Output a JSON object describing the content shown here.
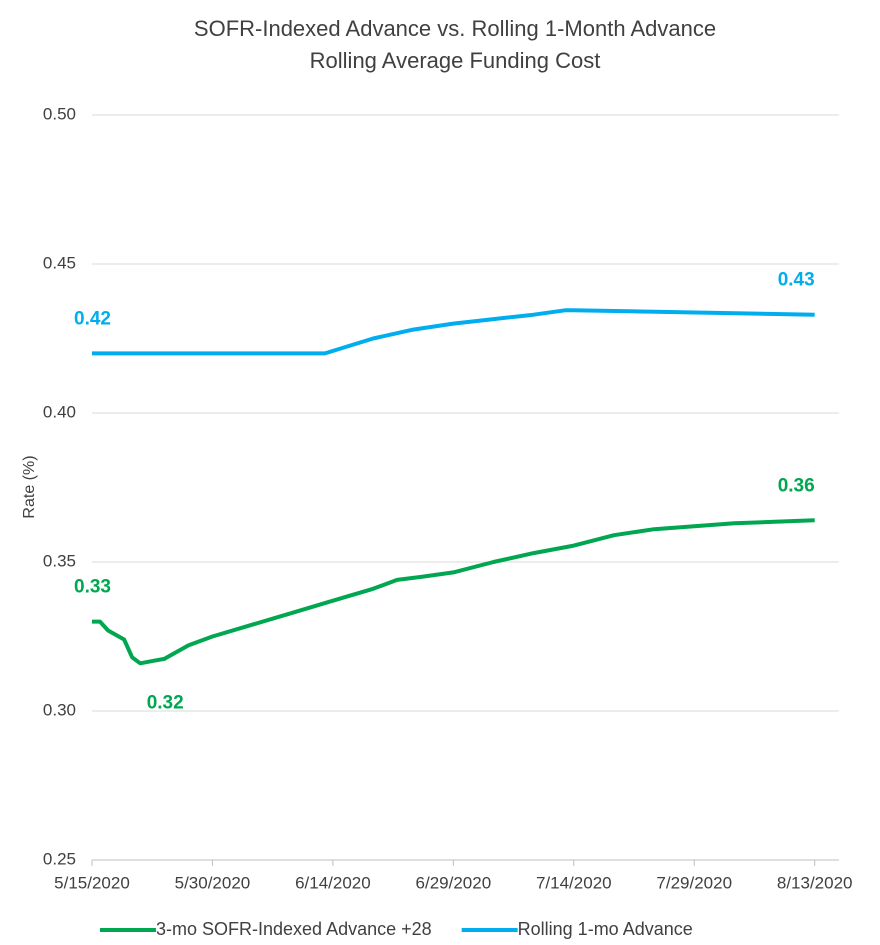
{
  "chart_data": {
    "type": "line",
    "title": "SOFR-Indexed Advance vs. Rolling 1-Month Advance",
    "subtitle": "Rolling Average Funding Cost",
    "y_label": "Rate (%)",
    "xlim": [
      "5/15/2020",
      "8/16/2020"
    ],
    "xticks": [
      "5/15/2020",
      "5/30/2020",
      "6/14/2020",
      "6/29/2020",
      "7/14/2020",
      "7/29/2020",
      "8/13/2020"
    ],
    "ylim": [
      0.25,
      0.5
    ],
    "yticks": [
      {
        "value": 0.25,
        "label": "0.25"
      },
      {
        "value": 0.3,
        "label": "0.30"
      },
      {
        "value": 0.35,
        "label": "0.35"
      },
      {
        "value": 0.4,
        "label": "0.40"
      },
      {
        "value": 0.45,
        "label": "0.45"
      },
      {
        "value": 0.5,
        "label": "0.50"
      }
    ],
    "grid": true,
    "legend": "bottom",
    "series": [
      {
        "name": "3-mo SOFR-Indexed Advance +28",
        "color": "#00a650",
        "x": [
          "5/15/2020",
          "5/16/2020",
          "5/17/2020",
          "5/19/2020",
          "5/20/2020",
          "5/21/2020",
          "5/23/2020",
          "5/24/2020",
          "5/25/2020",
          "5/27/2020",
          "5/30/2020",
          "6/4/2020",
          "6/9/2020",
          "6/14/2020",
          "6/19/2020",
          "6/22/2020",
          "6/25/2020",
          "6/29/2020",
          "7/4/2020",
          "7/9/2020",
          "7/14/2020",
          "7/19/2020",
          "7/24/2020",
          "7/29/2020",
          "8/3/2020",
          "8/8/2020",
          "8/13/2020"
        ],
        "values": [
          0.33,
          0.33,
          0.327,
          0.324,
          0.318,
          0.316,
          0.317,
          0.3175,
          0.319,
          0.322,
          0.325,
          0.329,
          0.333,
          0.337,
          0.341,
          0.344,
          0.345,
          0.3465,
          0.35,
          0.353,
          0.3555,
          0.359,
          0.361,
          0.362,
          0.363,
          0.3635,
          0.364
        ],
        "value_labels": [
          "0.33",
          null,
          null,
          null,
          null,
          "0.32",
          null,
          null,
          null,
          null,
          null,
          null,
          null,
          null,
          null,
          null,
          null,
          null,
          null,
          null,
          null,
          null,
          null,
          null,
          null,
          null,
          "0.36"
        ]
      },
      {
        "name": "Rolling 1-mo Advance",
        "color": "#00aeef",
        "x": [
          "5/15/2020",
          "6/13/2020",
          "6/19/2020",
          "6/24/2020",
          "6/29/2020",
          "7/4/2020",
          "7/9/2020",
          "7/13/2020",
          "7/14/2020",
          "8/13/2020"
        ],
        "values": [
          0.42,
          0.42,
          0.425,
          0.428,
          0.43,
          0.4315,
          0.433,
          0.4345,
          0.4345,
          0.433
        ],
        "value_labels": [
          "0.42",
          null,
          null,
          null,
          null,
          null,
          null,
          null,
          null,
          "0.43"
        ]
      }
    ]
  }
}
